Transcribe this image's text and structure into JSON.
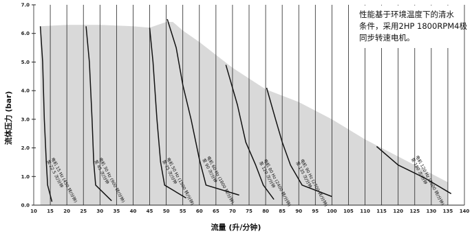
{
  "chart_data": {
    "type": "line",
    "title": "",
    "xlabel": "流量 (升/分钟)",
    "ylabel": "流体压力 (bar)",
    "xlim": [
      10,
      140
    ],
    "ylim": [
      0,
      7
    ],
    "x_ticks": [
      "10",
      "15",
      "20",
      "25",
      "30",
      "35",
      "40",
      "45",
      "50",
      "55",
      "60",
      "65",
      "70",
      "75",
      "80",
      "85",
      "90",
      "95",
      "100",
      "105",
      "110",
      "115",
      "120",
      "125",
      "130",
      "135",
      "140"
    ],
    "y_ticks": [
      "0.0",
      "1.0",
      "2.0",
      "3.0",
      "4.0",
      "5.0",
      "6.0",
      "7.0"
    ],
    "grid": "vertical",
    "annotation": [
      "性能基于环境温度下的清水",
      "条件，采用2HP 1800RPM4极",
      "同步转速电机。"
    ],
    "envelope": {
      "name": "",
      "points": [
        [
          12,
          6.25
        ],
        [
          20,
          6.3
        ],
        [
          30,
          6.3
        ],
        [
          40,
          6.25
        ],
        [
          45,
          6.2
        ],
        [
          50,
          6.4
        ],
        [
          52,
          6.4
        ],
        [
          55,
          6.1
        ],
        [
          60,
          5.7
        ],
        [
          70,
          4.8
        ],
        [
          80,
          4.05
        ],
        [
          90,
          3.6
        ],
        [
          100,
          3.0
        ],
        [
          110,
          2.3
        ],
        [
          120,
          1.7
        ],
        [
          130,
          1.1
        ],
        [
          135,
          0.8
        ],
        [
          135,
          0
        ],
        [
          12,
          0
        ]
      ]
    },
    "series": [
      {
        "name": "电机 15 Hz (450 转/分钟) 泵 22.5 次/分钟",
        "points": [
          [
            12,
            6.25
          ],
          [
            12.7,
            5
          ],
          [
            13.2,
            3
          ],
          [
            13.8,
            1.5
          ],
          [
            14.2,
            0.7
          ],
          [
            15.5,
            0.12
          ]
        ]
      },
      {
        "name": "电机 30 Hz (900 转/分钟) 泵 45 次/分钟",
        "points": [
          [
            25.8,
            6.25
          ],
          [
            26.8,
            5
          ],
          [
            27.6,
            3
          ],
          [
            28.1,
            1.5
          ],
          [
            28.7,
            0.7
          ],
          [
            33.5,
            0.15
          ]
        ]
      },
      {
        "name": "电机 50 Hz (1500 转/分钟) 泵 75 次/分钟",
        "points": [
          [
            45,
            6.2
          ],
          [
            46,
            5
          ],
          [
            47.2,
            3
          ],
          [
            48.3,
            1.5
          ],
          [
            49.5,
            0.7
          ],
          [
            56,
            0.25
          ]
        ]
      },
      {
        "name": "电机 60 Hz (1800 转/分钟) 泵 90 次/分钟",
        "points": [
          [
            50.3,
            6.5
          ],
          [
            53,
            5.5
          ],
          [
            55,
            4.2
          ],
          [
            57.5,
            3
          ],
          [
            60,
            1.6
          ],
          [
            62,
            0.7
          ],
          [
            72,
            0.35
          ]
        ]
      },
      {
        "name": "电机 80 Hz (2400 转/分钟) 泵 120 次/分钟",
        "points": [
          [
            68,
            4.9
          ],
          [
            69.5,
            4.3
          ],
          [
            71.5,
            3.5
          ],
          [
            74,
            2.2
          ],
          [
            77,
            1.4
          ],
          [
            79.3,
            0.7
          ],
          [
            82.5,
            0.2
          ]
        ]
      },
      {
        "name": "电机 90 Hz (2700 转/分钟) 泵 135 次/分钟",
        "points": [
          [
            80.3,
            4.1
          ],
          [
            83,
            3
          ],
          [
            85,
            2.2
          ],
          [
            87.5,
            1.4
          ],
          [
            91,
            0.7
          ],
          [
            100,
            0.3
          ]
        ]
      },
      {
        "name": "电机 120 Hz (3600 转/分钟) 泵 180 次/分钟",
        "points": [
          [
            113.5,
            2.05
          ],
          [
            120,
            1.4
          ],
          [
            128,
            0.95
          ],
          [
            136,
            0.4
          ]
        ]
      }
    ],
    "colors": {
      "envelope": "#d9d9d9",
      "curve": "#111111",
      "grid": "#222222"
    }
  }
}
